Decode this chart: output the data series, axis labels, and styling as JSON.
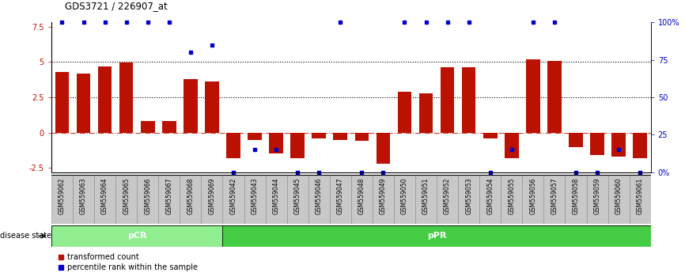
{
  "title": "GDS3721 / 226907_at",
  "samples": [
    "GSM559062",
    "GSM559063",
    "GSM559064",
    "GSM559065",
    "GSM559066",
    "GSM559067",
    "GSM559068",
    "GSM559069",
    "GSM559042",
    "GSM559043",
    "GSM559044",
    "GSM559045",
    "GSM559046",
    "GSM559047",
    "GSM559048",
    "GSM559049",
    "GSM559050",
    "GSM559051",
    "GSM559052",
    "GSM559053",
    "GSM559054",
    "GSM559055",
    "GSM559056",
    "GSM559057",
    "GSM559058",
    "GSM559059",
    "GSM559060",
    "GSM559061"
  ],
  "transformed_count": [
    4.3,
    4.2,
    4.7,
    4.95,
    0.8,
    0.8,
    3.8,
    3.6,
    -1.8,
    -0.5,
    -1.5,
    -1.8,
    -0.4,
    -0.5,
    -0.6,
    -2.2,
    2.9,
    2.8,
    4.6,
    4.6,
    -0.4,
    -1.8,
    5.2,
    5.1,
    -1.0,
    -1.6,
    -1.7,
    -1.8
  ],
  "percentile_rank": [
    100,
    100,
    100,
    100,
    100,
    100,
    80,
    85,
    0,
    15,
    15,
    0,
    0,
    100,
    0,
    0,
    100,
    100,
    100,
    100,
    0,
    15,
    100,
    100,
    0,
    0,
    15,
    0
  ],
  "group_pCR_count": 8,
  "group_pPR_count": 20,
  "bar_color": "#BB1100",
  "dot_color": "#0000CC",
  "pCR_color": "#90EE90",
  "pPR_color": "#44CC44",
  "yticks_left": [
    -2.5,
    0,
    2.5,
    5,
    7.5
  ],
  "ytick_right_labels": [
    "0%",
    "25",
    "50",
    "75",
    "100%"
  ],
  "yticks_right_pct": [
    0,
    25,
    50,
    75,
    100
  ],
  "hline_dotted": [
    2.5,
    5.0
  ],
  "ylim": [
    -2.8,
    7.8
  ],
  "pct_min": 0,
  "pct_max": 100
}
